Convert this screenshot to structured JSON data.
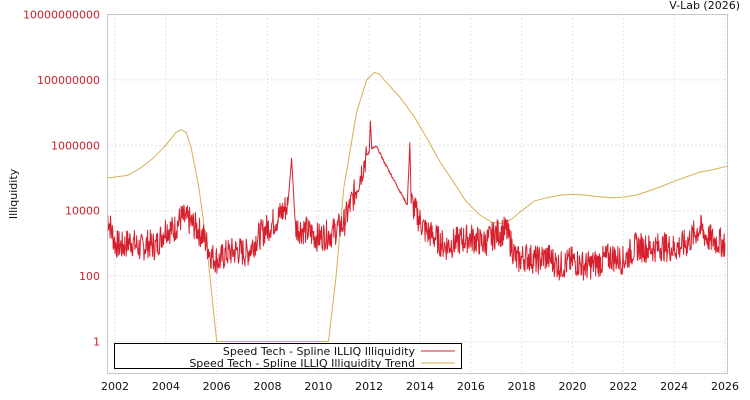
{
  "credit": "V-Lab (2026)",
  "colors": {
    "series": "#d7202d",
    "trend": "#d4b155",
    "ytick": "#cc1f2a",
    "frame": "#c8c8c8"
  },
  "chart_data": {
    "type": "line",
    "title": "",
    "xlabel": "",
    "ylabel": "Illiquidity",
    "yscale": "log",
    "ylim": [
      0.1,
      10000000000
    ],
    "xlim": [
      2001.7,
      2026.1
    ],
    "grid": true,
    "legend_position": "lower-left inside",
    "y_ticks": [
      "10000000000",
      "100000000",
      "1000000",
      "10000",
      "100",
      "1"
    ],
    "x_ticks": [
      "2002",
      "2004",
      "2006",
      "2008",
      "2010",
      "2012",
      "2014",
      "2016",
      "2018",
      "2020",
      "2022",
      "2024",
      "2026"
    ],
    "legend": [
      "Speed Tech - Spline ILLIQ Illiquidity",
      "Speed Tech - Spline ILLIQ Illiquidity Trend"
    ],
    "series": [
      {
        "name": "Speed Tech - Spline ILLIQ Illiquidity",
        "x": [
          2001.7,
          2002.0,
          2002.3,
          2002.6,
          2003.0,
          2003.3,
          2003.6,
          2004.0,
          2004.3,
          2004.6,
          2004.9,
          2005.2,
          2005.5,
          2005.8,
          2006.1,
          2006.4,
          2006.8,
          2007.2,
          2007.6,
          2008.0,
          2008.4,
          2008.8,
          2008.95,
          2009.1,
          2009.5,
          2010.0,
          2010.5,
          2011.0,
          2011.5,
          2011.9,
          2012.0,
          2012.05,
          2012.1,
          2012.3,
          2012.6,
          2013.0,
          2013.5,
          2013.6,
          2013.65,
          2013.8,
          2014.2,
          2014.6,
          2015.0,
          2015.5,
          2016.0,
          2016.5,
          2017.0,
          2017.4,
          2017.8,
          2018.2,
          2018.6,
          2019.0,
          2019.5,
          2020.0,
          2020.5,
          2021.0,
          2021.5,
          2022.0,
          2022.5,
          2023.0,
          2023.5,
          2024.0,
          2024.5,
          2025.0,
          2025.3,
          2025.6,
          2026.0
        ],
        "values": [
          7000,
          1000,
          800,
          1200,
          700,
          1000,
          800,
          3000,
          2500,
          6000,
          5000,
          3000,
          1500,
          400,
          300,
          500,
          600,
          500,
          1500,
          3000,
          6000,
          15000,
          400000,
          3000,
          2500,
          1500,
          2000,
          4000,
          50000,
          500000,
          600000,
          6000000,
          800000,
          900000,
          300000,
          80000,
          15000,
          1200000,
          20000,
          10000,
          2500,
          1500,
          800,
          1200,
          1500,
          1000,
          2000,
          2500,
          300,
          400,
          300,
          400,
          200,
          300,
          200,
          250,
          400,
          300,
          800,
          700,
          800,
          700,
          1000,
          3000,
          1500,
          1200,
          1000
        ]
      },
      {
        "name": "Speed Tech - Spline ILLIQ Illiquidity Trend",
        "x": [
          2001.7,
          2002.5,
          2003.0,
          2003.5,
          2004.0,
          2004.4,
          2004.6,
          2004.8,
          2005.0,
          2005.3,
          2005.6,
          2006.0,
          2010.4,
          2010.7,
          2011.0,
          2011.5,
          2011.9,
          2012.2,
          2012.4,
          2012.7,
          2013.2,
          2013.8,
          2014.3,
          2014.8,
          2015.3,
          2015.8,
          2016.3,
          2016.8,
          2017.2,
          2017.6,
          2018.0,
          2018.5,
          2019.0,
          2019.5,
          2020.0,
          2020.5,
          2021.0,
          2021.5,
          2022.0,
          2022.5,
          2023.0,
          2023.5,
          2024.0,
          2024.5,
          2025.0,
          2025.5,
          2026.1
        ],
        "values": [
          100000,
          120000,
          200000,
          400000,
          1000000,
          2500000,
          3000000,
          2500000,
          800000,
          50000,
          1000,
          1,
          1,
          100,
          50000,
          10000000,
          100000000,
          170000000,
          150000000,
          80000000,
          30000000,
          7000000,
          1500000,
          300000,
          80000,
          20000,
          8000,
          4500,
          4000,
          5500,
          10000,
          20000,
          25000,
          30000,
          32000,
          30000,
          27000,
          25000,
          26000,
          30000,
          40000,
          55000,
          80000,
          110000,
          150000,
          180000,
          230000
        ]
      }
    ]
  }
}
